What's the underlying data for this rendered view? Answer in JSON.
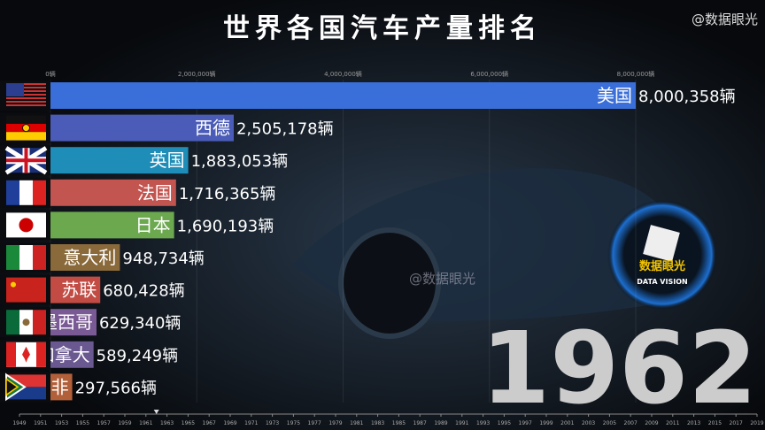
{
  "chart_data": {
    "type": "bar",
    "orientation": "horizontal",
    "title": "世界各国汽车产量排名",
    "categories": [
      "美国",
      "西德",
      "英国",
      "法国",
      "日本",
      "意大利",
      "苏联",
      "墨西哥",
      "加拿大",
      "南非"
    ],
    "values": [
      8000358,
      2505178,
      1883053,
      1716365,
      1690193,
      948734,
      680428,
      629340,
      589249,
      297566
    ],
    "value_labels": [
      "8,000,358辆",
      "2,505,178辆",
      "1,883,053辆",
      "1,716,365辆",
      "1,690,193辆",
      "948,734辆",
      "680,428辆",
      "629,340辆",
      "589,249辆",
      "297,566辆"
    ],
    "colors": [
      "#3a6fd9",
      "#4b5cb8",
      "#1e8db8",
      "#c25550",
      "#6ba84e",
      "#8a6a3a",
      "#c24c44",
      "#7a5a94",
      "#6a5890",
      "#b2603a"
    ],
    "xlim": [
      0,
      8000000
    ],
    "xticks": [
      {
        "value": 0,
        "label": "0辆"
      },
      {
        "value": 2000000,
        "label": "2,000,000辆"
      },
      {
        "value": 4000000,
        "label": "4,000,000辆"
      },
      {
        "value": 6000000,
        "label": "6,000,000辆"
      },
      {
        "value": 8000000,
        "label": "8,000,000辆"
      }
    ],
    "grid": true,
    "year": 1962,
    "timeline": [
      1949,
      1951,
      1953,
      1955,
      1957,
      1959,
      1961,
      1963,
      1965,
      1967,
      1969,
      1971,
      1973,
      1975,
      1977,
      1979,
      1981,
      1983,
      1985,
      1987,
      1989,
      1991,
      1993,
      1995,
      1997,
      1999,
      2001,
      2003,
      2005,
      2007,
      2009,
      2011,
      2013,
      2015,
      2017,
      2019
    ]
  },
  "watermark": "@数据眼光",
  "logo": {
    "name": "数据眼光",
    "subtitle": "DATA VISION"
  }
}
